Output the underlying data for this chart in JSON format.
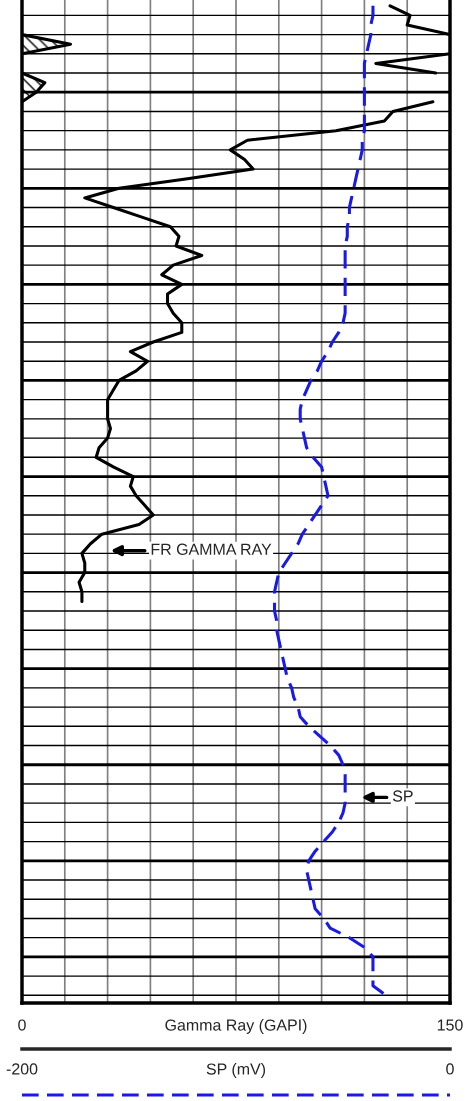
{
  "chart_data": {
    "type": "line",
    "orientation": "horizontal",
    "xlabel": "Gamma Ray (GAPI)",
    "x2label": "SP (mV)",
    "xlim": [
      0,
      150
    ],
    "xticks": [
      0,
      {
        "value": 15,
        "label": null
      },
      {
        "value": 30,
        "label": null
      },
      {
        "value": 45,
        "label": null
      },
      {
        "value": 60,
        "label": null
      },
      {
        "value": 75,
        "label": null
      },
      {
        "value": 90,
        "label": null
      },
      {
        "value": 105,
        "label": null
      },
      {
        "value": 120,
        "label": null
      },
      {
        "value": 135,
        "label": null
      },
      150
    ],
    "x2lim": [
      -200,
      0
    ],
    "x2ticks": [
      -200,
      0
    ],
    "categories": [
      null,
      null,
      null,
      null,
      null,
      null,
      null,
      null,
      null,
      null,
      null,
      null,
      null,
      null,
      null,
      null,
      null,
      null,
      null,
      null,
      null,
      null,
      null,
      null,
      null,
      null,
      null,
      null,
      null,
      null,
      null,
      null,
      null,
      null,
      null,
      null,
      null,
      null,
      null,
      null,
      null,
      null,
      null,
      null,
      null,
      null,
      null,
      null,
      null,
      null,
      null,
      null,
      null,
      null,
      null,
      null,
      null,
      null,
      null,
      null,
      null,
      null,
      null,
      null,
      null,
      null,
      null,
      null,
      null,
      null,
      null,
      null,
      null,
      null,
      null,
      null,
      null,
      null,
      null,
      null,
      null,
      null,
      null,
      null,
      null,
      null,
      null,
      null,
      null,
      null,
      null,
      null,
      null,
      null,
      null,
      null,
      null,
      null,
      null,
      null,
      null,
      null,
      null,
      null
    ],
    "tick_labels": "x",
    "grid": true,
    "series": [
      {
        "color": "#000000",
        "line_style": "solid",
        "values": [
          129,
          136,
          135,
          150,
          null,
          150,
          124,
          145,
          null,
          null,
          144,
          130,
          127,
          110,
          79,
          73,
          78,
          81,
          58,
          34,
          22,
          32,
          42,
          52,
          55,
          54,
          63,
          53,
          49,
          56,
          51,
          51,
          53,
          56,
          56,
          46,
          38,
          44,
          40,
          34,
          32,
          30,
          30,
          30,
          31,
          30,
          27,
          26,
          32,
          39,
          38,
          40,
          43,
          46,
          41,
          28,
          24,
          21,
          22,
          22,
          20,
          21,
          21,
          null,
          null,
          null,
          null,
          null,
          null,
          null,
          null,
          null,
          null,
          null,
          null,
          null,
          null,
          null,
          null,
          null,
          null,
          null,
          null,
          null,
          null,
          null,
          null,
          null,
          null,
          null,
          null,
          null,
          null,
          null,
          null,
          null,
          null,
          null,
          null,
          null,
          null,
          null,
          null,
          null
        ]
      },
      {
        "type": "area",
        "color": "#000000",
        "values": [
          null,
          null,
          null,
          0,
          17,
          0,
          null,
          0,
          8,
          5,
          0,
          null,
          null,
          null,
          null,
          null,
          null,
          null,
          null,
          null,
          null,
          null,
          null,
          null,
          null,
          null,
          null,
          null,
          null,
          null,
          null,
          null,
          null,
          null,
          null,
          null,
          null,
          null,
          null,
          null,
          null,
          null,
          null,
          null,
          null,
          null,
          null,
          null,
          null,
          null,
          null,
          null,
          null,
          null,
          null,
          null,
          null,
          null,
          null,
          null,
          null,
          null,
          null,
          null,
          null,
          null,
          null,
          null,
          null,
          null,
          null,
          null,
          null,
          null,
          null,
          null,
          null,
          null,
          null,
          null,
          null,
          null,
          null,
          null,
          null,
          null,
          null,
          null,
          null,
          null,
          null,
          null,
          null,
          null,
          null,
          null,
          null,
          null,
          null,
          null,
          null,
          null,
          null,
          null
        ]
      },
      {
        "axis": "x2",
        "color": "#1a1ae6",
        "line_style": "dashed",
        "values": [
          -36,
          -36,
          -37,
          -37,
          -38,
          -39,
          -40,
          -40,
          -40,
          -40,
          -40,
          -40,
          -40,
          -40,
          -41,
          -41,
          -42,
          -43,
          -44,
          -45,
          -46,
          -47,
          -47,
          -48,
          -48,
          -49,
          -49,
          -49,
          -49,
          -49,
          -49,
          -49,
          -49,
          -50,
          -52,
          -55,
          -57,
          -60,
          -62,
          -65,
          -67,
          -69,
          -70,
          -70,
          -69,
          -68,
          -67,
          -64,
          -60,
          -59,
          -58,
          -57,
          -60,
          -63,
          -66,
          -69,
          -71,
          -74,
          -77,
          -80,
          -81,
          -82,
          -82,
          -82,
          -81,
          -81,
          -80,
          -79,
          -78,
          -77,
          -76,
          -74,
          -73,
          -71,
          -70,
          -66,
          -61,
          -56,
          -52,
          -50,
          -49,
          -49,
          -49,
          -49,
          -50,
          -52,
          -55,
          -59,
          -63,
          -66,
          -67,
          -66,
          -65,
          -64,
          -63,
          -59,
          -56,
          -47,
          -40,
          -36,
          -36,
          -36,
          -36,
          -30
        ]
      }
    ],
    "annotations": [
      "FR GAMMA RAY",
      "SP"
    ]
  }
}
